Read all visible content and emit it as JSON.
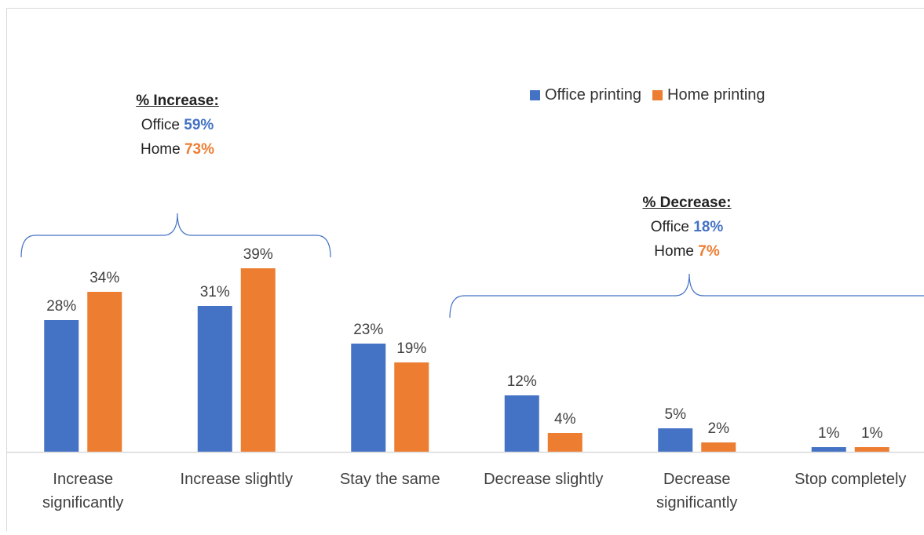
{
  "colors": {
    "office": "#4472C4",
    "home": "#ED7D31",
    "axis": "#D9D9D9",
    "text": "#404040",
    "bracket": "#4472C4"
  },
  "chart_data": {
    "type": "bar",
    "title": "",
    "xlabel": "",
    "ylabel": "",
    "ylim": [
      0,
      45
    ],
    "grid": false,
    "legend_position": "top-right",
    "categories": [
      [
        "Increase",
        "significantly"
      ],
      [
        "Increase slightly"
      ],
      [
        "Stay the same"
      ],
      [
        "Decrease slightly"
      ],
      [
        "Decrease",
        "significantly"
      ],
      [
        "Stop completely"
      ]
    ],
    "series": [
      {
        "name": "Office printing",
        "values": [
          28,
          31,
          23,
          12,
          5,
          1
        ],
        "labels": [
          "28%",
          "31%",
          "23%",
          "12%",
          "5%",
          "1%"
        ]
      },
      {
        "name": "Home printing",
        "values": [
          34,
          39,
          19,
          4,
          2,
          1
        ],
        "labels": [
          "34%",
          "39%",
          "19%",
          "4%",
          "2%",
          "1%"
        ]
      }
    ]
  },
  "annotations": {
    "increase": {
      "heading": "% Increase:",
      "office_label": "Office",
      "office_value": "59%",
      "home_label": "Home",
      "home_value": "73%"
    },
    "decrease": {
      "heading": "% Decrease:",
      "office_label": "Office",
      "office_value": "18%",
      "home_label": "Home",
      "home_value": "7%"
    }
  }
}
